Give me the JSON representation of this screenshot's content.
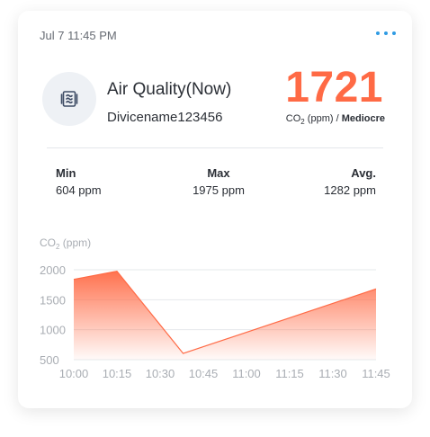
{
  "header": {
    "timestamp": "Jul 7 11:45 PM",
    "more_icon": "more-horizontal-icon"
  },
  "sensor": {
    "icon": "air-filter-icon",
    "title": "Air Quality(Now)",
    "device_name": "Divicename123456",
    "current_value": "1721",
    "unit_prefix": "CO",
    "unit_sub": "2",
    "unit_suffix": " (ppm) / ",
    "status": "Mediocre"
  },
  "stats": {
    "min_label": "Min",
    "min_value": "604 ppm",
    "max_label": "Max",
    "max_value": "1975 ppm",
    "avg_label": "Avg.",
    "avg_value": "1282 ppm"
  },
  "colors": {
    "accent": "#ff6a45",
    "more": "#2f9be3",
    "text": "#2b2f36"
  },
  "chart_data": {
    "type": "area",
    "ylabel_prefix": "CO",
    "ylabel_sub": "2",
    "ylabel_suffix": " (ppm)",
    "ylim": [
      500,
      2000
    ],
    "y_ticks": [
      2000,
      1500,
      1000,
      500
    ],
    "x_ticks": [
      "10:00",
      "10:15",
      "10:30",
      "10:45",
      "11:00",
      "11:15",
      "11:30",
      "11:45"
    ],
    "series": [
      {
        "x": [
          "10:00",
          "10:15",
          "10:38",
          "11:45"
        ],
        "values": [
          1840,
          1975,
          604,
          1680
        ]
      }
    ],
    "grid": true
  }
}
